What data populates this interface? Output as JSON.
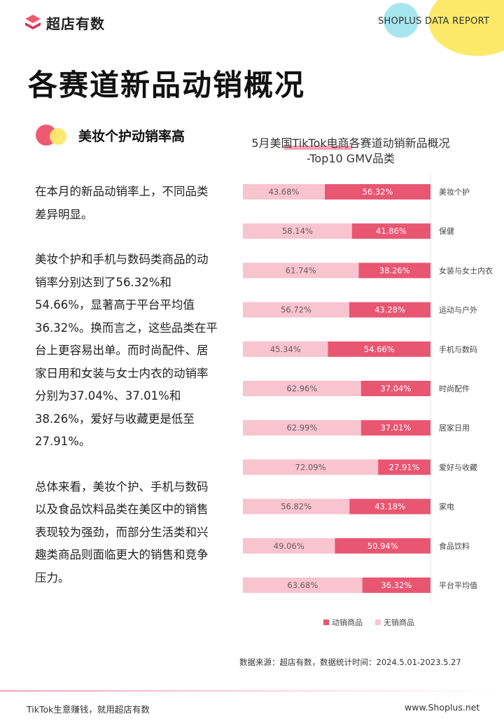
{
  "header": {
    "logo_text": "超店有数",
    "report_label": "SHOPLUS DATA REPORT"
  },
  "page_title": "各赛道新品动销概况",
  "subheading": "美妆个护动销率高",
  "body_paragraphs": [
    "在本月的新品动销率上，不同品类差异明显。",
    "美妆个护和手机与数码类商品的动销率分别达到了56.32%和54.66%，显著高于平台平均值36.32%。换而言之，这些品类在平台上更容易出单。而时尚配件、居家日用和女装与女士内衣的动销率分别为37.04%、37.01%和38.26%，爱好与收藏更是低至27.91%。",
    "总体来看，美妆个护、手机与数码以及食品饮料品类在美区中的销售表现较为强劲，而部分生活类和兴趣类商品则面临更大的销售和竞争压力。"
  ],
  "chart_data": {
    "type": "bar",
    "orientation": "horizontal",
    "stacked": true,
    "title_line1": "5月美国TikTok电商各赛道动销新品概况",
    "title_line2": "-Top10 GMV品类",
    "categories": [
      "美妆个护",
      "保健",
      "女装与女士内衣",
      "运动与户外",
      "手机与数码",
      "时尚配件",
      "居家日用",
      "爱好与收藏",
      "家电",
      "食品饮料",
      "平台平均值"
    ],
    "series": [
      {
        "name": "无销商品",
        "color": "#f8c4cf",
        "values": [
          43.68,
          58.14,
          61.74,
          56.72,
          45.34,
          62.96,
          62.99,
          72.09,
          56.82,
          49.06,
          63.68
        ],
        "labels": [
          "43.68%",
          "58.14%",
          "61.74%",
          "56.72%",
          "45.34%",
          "62.96%",
          "62.99%",
          "72.09%",
          "56.82%",
          "49.06%",
          "63.68%"
        ]
      },
      {
        "name": "动销商品",
        "color": "#e85672",
        "values": [
          56.32,
          41.86,
          38.26,
          43.28,
          54.66,
          37.04,
          37.01,
          27.91,
          43.18,
          50.94,
          36.32
        ],
        "labels": [
          "56.32%",
          "41.86%",
          "38.26%",
          "43.28%",
          "54.66%",
          "37.04%",
          "37.01%",
          "27.91%",
          "43.18%",
          "50.94%",
          "36.32%"
        ]
      }
    ],
    "xlim": [
      0,
      100
    ],
    "legend_position": "bottom",
    "legend_order": [
      "动销商品",
      "无销商品"
    ],
    "grid": false
  },
  "source_note": "数据来源：超店有数，数据统计时间：2024.5.01-2023.5.27",
  "footer": {
    "slogan": "TikTok生意赚钱，就用超店有数",
    "website": "www.Shoplus.net"
  },
  "colors": {
    "accent_red": "#e85672",
    "accent_pink": "#f8c4cf",
    "deco_yellow": "#fbe96a",
    "deco_cyan": "#a6e6ee"
  }
}
